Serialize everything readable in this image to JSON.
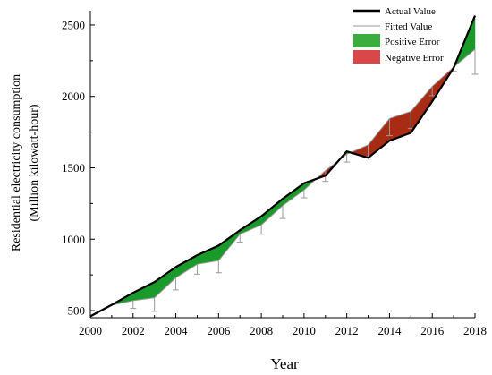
{
  "chart_data": {
    "type": "area",
    "xlabel": "Year",
    "ylabel": [
      "Residential electricity consumption",
      "(Million kilowatt-hour)"
    ],
    "xlim": [
      2000,
      2018
    ],
    "ylim": [
      450,
      2600
    ],
    "x_ticks": [
      2000,
      2002,
      2004,
      2006,
      2008,
      2010,
      2012,
      2014,
      2016,
      2018
    ],
    "y_ticks": [
      500,
      1000,
      1500,
      2000,
      2500
    ],
    "legend_position": "top-right",
    "x": [
      2000,
      2001,
      2002,
      2003,
      2004,
      2005,
      2006,
      2007,
      2008,
      2009,
      2010,
      2011,
      2012,
      2013,
      2014,
      2015,
      2016,
      2017,
      2018
    ],
    "series": [
      {
        "name": "Actual Value",
        "values": [
          460,
          540,
          625,
          700,
          805,
          888,
          955,
          1063,
          1160,
          1283,
          1392,
          1445,
          1615,
          1570,
          1690,
          1745,
          1965,
          2200,
          2565
        ],
        "color": "#000000"
      },
      {
        "name": "Fitted Value",
        "values": [
          455,
          538,
          570,
          590,
          730,
          825,
          850,
          1035,
          1100,
          1235,
          1345,
          1480,
          1595,
          1660,
          1845,
          1895,
          2070,
          2205,
          2330
        ],
        "color": "#999999",
        "error_bars": [
          0,
          0,
          55,
          95,
          85,
          70,
          85,
          55,
          65,
          90,
          55,
          75,
          55,
          80,
          120,
          120,
          65,
          30,
          175
        ]
      }
    ],
    "legend": {
      "actual": "Actual Value",
      "fitted": "Fitted Value",
      "positive_error": "Positive Error",
      "negative_error": "Negative Error"
    },
    "colors": {
      "actual": "#000000",
      "fitted": "#999999",
      "positive_error_fill": "#1a9a2a",
      "negative_error_fill": "#a82c14",
      "positive_legend": "#3bad3f",
      "negative_legend": "#d9474a",
      "error_bar": "#9a9a9a"
    }
  }
}
